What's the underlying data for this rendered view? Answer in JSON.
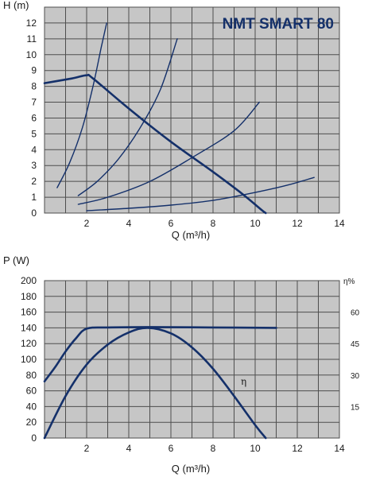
{
  "colors": {
    "background": "#c6c6c6",
    "grid": "#4e4e4e",
    "curve": "#14306a",
    "title": "#14306a"
  },
  "chart_data": [
    {
      "type": "line",
      "title": "NMT SMART 80",
      "ylabel": "H (m)",
      "xlabel": "Q (m³/h)",
      "xlim": [
        0,
        14
      ],
      "ylim": [
        0,
        13
      ],
      "xticks": [
        "2",
        "4",
        "6",
        "8",
        "10",
        "12",
        "14"
      ],
      "yticks": [
        "0",
        "1",
        "2",
        "3",
        "4",
        "5",
        "6",
        "7",
        "8",
        "9",
        "10",
        "11",
        "12"
      ],
      "grid": true,
      "series": [
        {
          "role": "max-curve",
          "points": [
            [
              0,
              8.2
            ],
            [
              1.3,
              8.5
            ],
            [
              2.0,
              8.7
            ],
            [
              2.3,
              8.5
            ],
            [
              4.0,
              6.6
            ],
            [
              6.0,
              4.5
            ],
            [
              8.0,
              2.6
            ],
            [
              9.4,
              1.2
            ],
            [
              10.3,
              0.2
            ],
            [
              10.5,
              0.0
            ]
          ]
        },
        {
          "role": "system-curve",
          "points": [
            [
              0.6,
              1.6
            ],
            [
              1.2,
              3.2
            ],
            [
              1.8,
              5.4
            ],
            [
              2.3,
              8.0
            ],
            [
              2.7,
              10.5
            ],
            [
              2.95,
              12.0
            ]
          ]
        },
        {
          "role": "system-curve",
          "points": [
            [
              1.6,
              1.1
            ],
            [
              2.5,
              2.0
            ],
            [
              3.5,
              3.4
            ],
            [
              4.5,
              5.3
            ],
            [
              5.5,
              7.8
            ],
            [
              6.3,
              11.0
            ]
          ]
        },
        {
          "role": "system-curve",
          "points": [
            [
              1.6,
              0.55
            ],
            [
              3.0,
              1.0
            ],
            [
              5.0,
              2.0
            ],
            [
              7.0,
              3.5
            ],
            [
              9.0,
              5.2
            ],
            [
              10.2,
              7.0
            ]
          ]
        },
        {
          "role": "system-curve",
          "points": [
            [
              2.0,
              0.15
            ],
            [
              4.0,
              0.3
            ],
            [
              6.0,
              0.5
            ],
            [
              8.0,
              0.8
            ],
            [
              10.0,
              1.3
            ],
            [
              11.5,
              1.75
            ],
            [
              12.8,
              2.25
            ]
          ]
        }
      ]
    },
    {
      "type": "line",
      "ylabel": "P (W)",
      "xlabel": "Q (m³/h)",
      "xlim": [
        0,
        14
      ],
      "ylim": [
        0,
        200
      ],
      "xticks": [
        "2",
        "4",
        "6",
        "8",
        "10",
        "12",
        "14"
      ],
      "yticks": [
        "0",
        "20",
        "40",
        "60",
        "80",
        "100",
        "120",
        "140",
        "160",
        "180",
        "200"
      ],
      "y2label": "η%",
      "y2lim": [
        0,
        75
      ],
      "y2ticks": [
        "15",
        "30",
        "45",
        "60"
      ],
      "grid": true,
      "annotations": [
        "η"
      ],
      "series": [
        {
          "role": "power",
          "axis": "left",
          "points": [
            [
              0,
              72
            ],
            [
              0.5,
              90
            ],
            [
              1.0,
              110
            ],
            [
              1.5,
              127
            ],
            [
              2.0,
              139
            ],
            [
              3.0,
              140.5
            ],
            [
              5.0,
              141
            ],
            [
              8.0,
              140.5
            ],
            [
              11.0,
              140
            ]
          ]
        },
        {
          "role": "efficiency",
          "axis": "right",
          "points": [
            [
              0,
              0
            ],
            [
              1,
              20
            ],
            [
              2,
              35
            ],
            [
              3,
              44.5
            ],
            [
              4,
              50.3
            ],
            [
              4.9,
              52.5
            ],
            [
              6,
              49.9
            ],
            [
              7,
              43.2
            ],
            [
              8,
              33
            ],
            [
              9,
              20
            ],
            [
              10,
              6.2
            ],
            [
              10.5,
              0
            ]
          ]
        }
      ]
    }
  ]
}
